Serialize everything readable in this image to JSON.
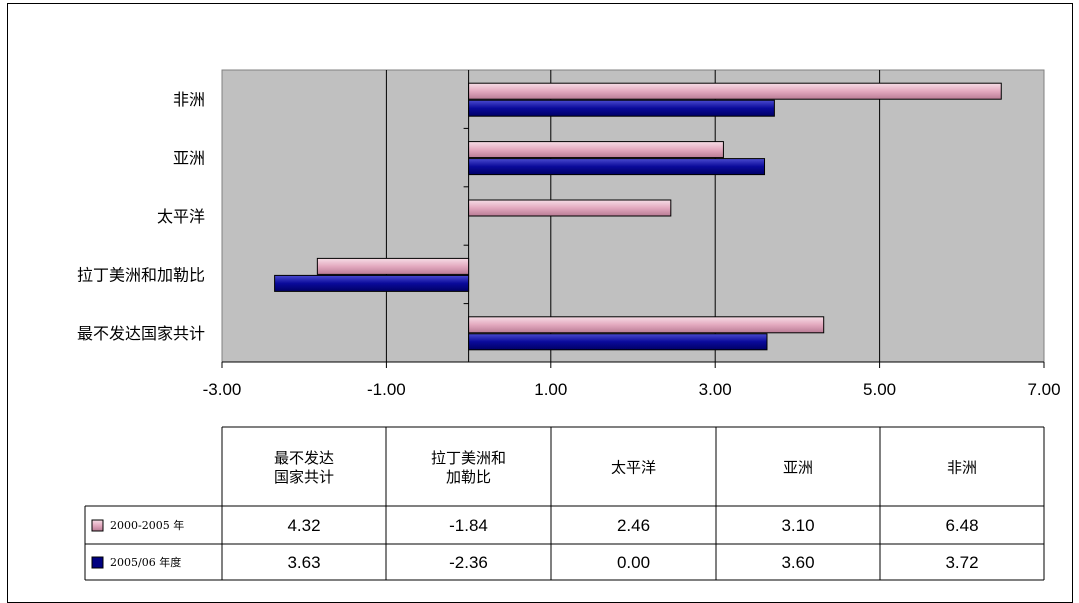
{
  "chart_data": {
    "type": "bar",
    "orientation": "horizontal",
    "categories": [
      "最不发达国家共计",
      "拉丁美洲和加勒比",
      "太平洋",
      "亚洲",
      "非洲"
    ],
    "categories_top_to_bottom": [
      "非洲",
      "亚洲",
      "太平洋",
      "拉丁美洲和加勒比",
      "最不发达国家共计"
    ],
    "table_headers": [
      [
        "最不发达",
        "国家共计"
      ],
      [
        "拉丁美洲和",
        "加勒比"
      ],
      [
        "太平洋"
      ],
      [
        "亚洲"
      ],
      [
        "非洲"
      ]
    ],
    "series": [
      {
        "name": "2000-2005 年",
        "values": [
          4.32,
          -1.84,
          2.46,
          3.1,
          6.48
        ],
        "labels": [
          "4.32",
          "-1.84",
          "2.46",
          "3.10",
          "6.48"
        ],
        "color": "#e8b4c8"
      },
      {
        "name": "2005/06 年度",
        "values": [
          3.63,
          -2.36,
          0.0,
          3.6,
          3.72
        ],
        "labels": [
          "3.63",
          "-2.36",
          "0.00",
          "3.60",
          "3.72"
        ],
        "color": "#00008b"
      }
    ],
    "xlim": [
      -3.0,
      7.0
    ],
    "x_ticks": [
      -3.0,
      -1.0,
      1.0,
      3.0,
      5.0,
      7.0
    ],
    "x_tick_labels": [
      "-3.00",
      "-1.00",
      "1.00",
      "3.00",
      "5.00",
      "7.00"
    ],
    "grid": true,
    "plot_background": "#c0c0c0",
    "legend": "bottom-left",
    "data_table": true,
    "title": "",
    "xlabel": "",
    "ylabel": ""
  }
}
